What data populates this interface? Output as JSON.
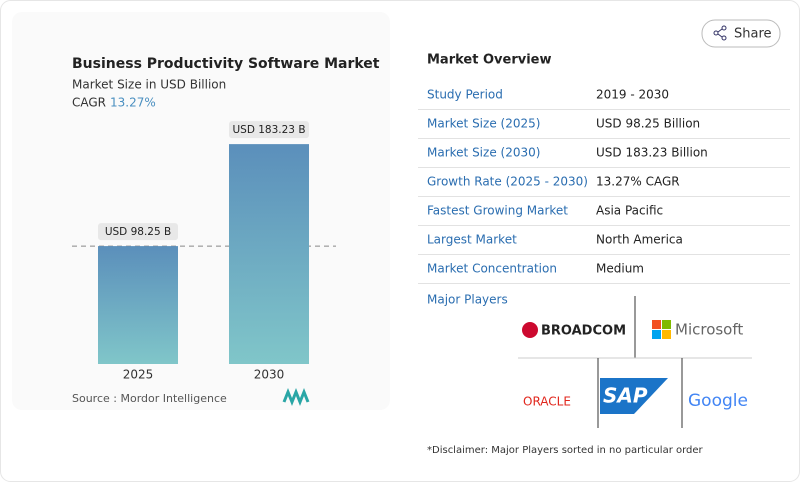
{
  "chart_data": {
    "type": "bar",
    "title": "Business Productivity Software Market",
    "subtitle": "Market Size in USD Billion",
    "cagr_label": "CAGR",
    "cagr_value": "13.27%",
    "categories": [
      "2025",
      "2030"
    ],
    "values": [
      98.25,
      183.23
    ],
    "value_labels": [
      "USD 98.25 B",
      "USD 183.23 B"
    ],
    "source": "Source :  Mordor Intelligence"
  },
  "share": "Share",
  "overview": {
    "title": "Market Overview",
    "rows": [
      [
        "Study Period",
        "2019 - 2030"
      ],
      [
        "Market Size (2025)",
        "USD 98.25 Billion"
      ],
      [
        "Market Size (2030)",
        "USD 183.23 Billion"
      ],
      [
        "Growth Rate (2025 - 2030)",
        "13.27% CAGR"
      ],
      [
        "Fastest Growing Market",
        "Asia Pacific"
      ],
      [
        "Largest Market",
        "North America"
      ],
      [
        "Market Concentration",
        "Medium"
      ]
    ]
  },
  "players": {
    "title": "Major Players",
    "logos": [
      "BROADCOM",
      "Microsoft",
      "ORACLE",
      "SAP",
      "Google"
    ]
  },
  "disclaimer": "*Disclaimer: Major Players sorted in no particular order"
}
